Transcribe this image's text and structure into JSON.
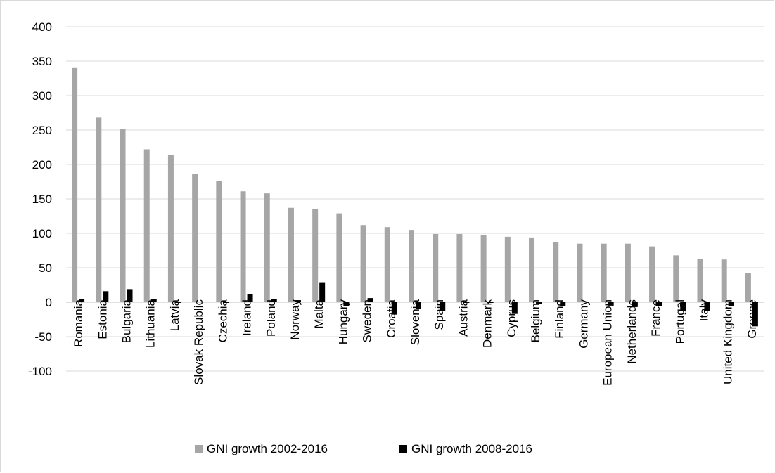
{
  "chart_data": {
    "type": "bar",
    "title": "",
    "xlabel": "",
    "ylabel": "",
    "ylim": [
      -100,
      400
    ],
    "ytick_step": 50,
    "grid": true,
    "legend_position": "bottom",
    "categories": [
      "Romania",
      "Estonia",
      "Bulgaria",
      "Lithuania",
      "Latvia",
      "Slovak Republic",
      "Czechia",
      "Ireland",
      "Poland",
      "Norway",
      "Malta",
      "Hungary",
      "Sweden",
      "Croatia",
      "Slovenia",
      "Spain",
      "Austria",
      "Denmark",
      "Cyprus",
      "Belgium",
      "Finland",
      "Germany",
      "European Union",
      "Netherlands",
      "France",
      "Portugal",
      "Italy",
      "United Kingdom",
      "Greece"
    ],
    "series": [
      {
        "name": "GNI growth 2002-2016",
        "color": "#a6a6a6",
        "values": [
          340,
          268,
          251,
          222,
          214,
          186,
          176,
          161,
          158,
          137,
          135,
          129,
          112,
          109,
          105,
          99,
          99,
          97,
          95,
          94,
          87,
          85,
          85,
          85,
          81,
          68,
          63,
          62,
          42
        ]
      },
      {
        "name": "GNI growth 2008-2016",
        "color": "#000000",
        "values": [
          5,
          16,
          19,
          5,
          -1,
          0,
          -1,
          12,
          5,
          3,
          29,
          -6,
          6,
          -18,
          -10,
          -13,
          -1,
          -1,
          -17,
          -3,
          -6,
          0,
          -5,
          -7,
          -6,
          -12,
          -13,
          -6,
          -35
        ]
      }
    ]
  }
}
